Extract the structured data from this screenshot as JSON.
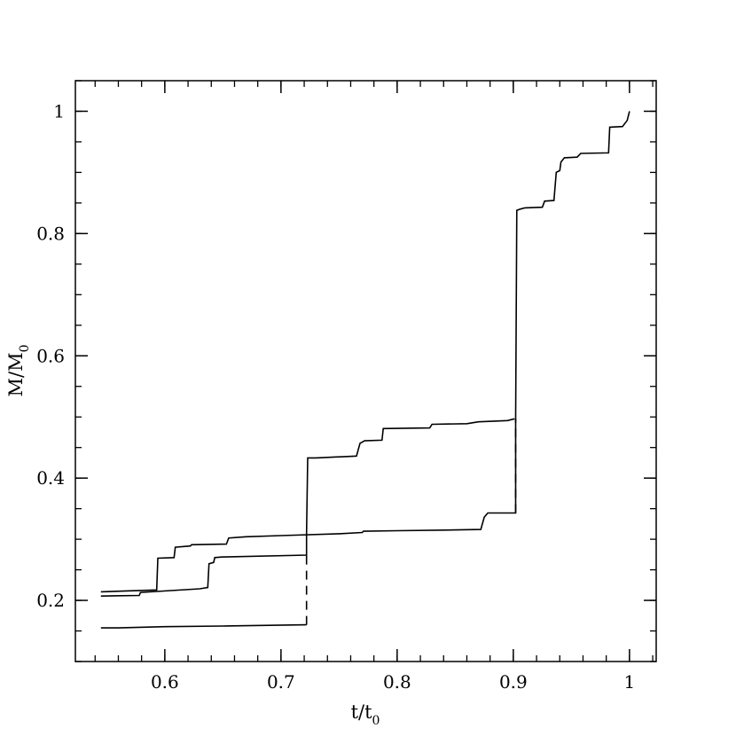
{
  "chart_data": {
    "type": "line",
    "xlabel": {
      "main": "t/t",
      "sub": "0"
    },
    "ylabel": {
      "main": "M/M",
      "sub": "0"
    },
    "xlim": [
      0.523,
      1.023
    ],
    "ylim": [
      0.1,
      1.05
    ],
    "xticks": [
      {
        "value": 0.6,
        "label": "0.6"
      },
      {
        "value": 0.7,
        "label": "0.7"
      },
      {
        "value": 0.8,
        "label": "0.8"
      },
      {
        "value": 0.9,
        "label": "0.9"
      },
      {
        "value": 1.0,
        "label": "1"
      }
    ],
    "yticks": [
      {
        "value": 0.2,
        "label": "0.2"
      },
      {
        "value": 0.4,
        "label": "0.4"
      },
      {
        "value": 0.6,
        "label": "0.6"
      },
      {
        "value": 0.8,
        "label": "0.8"
      },
      {
        "value": 1.0,
        "label": "1"
      }
    ],
    "x_minor_step": 0.02,
    "y_minor_step": 0.05,
    "series": [
      {
        "style": "solid",
        "points": [
          [
            0.545,
            0.214
          ],
          [
            0.593,
            0.217
          ],
          [
            0.594,
            0.269
          ],
          [
            0.608,
            0.27
          ],
          [
            0.609,
            0.287
          ],
          [
            0.622,
            0.289
          ],
          [
            0.623,
            0.291
          ],
          [
            0.653,
            0.292
          ],
          [
            0.655,
            0.302
          ],
          [
            0.67,
            0.304
          ],
          [
            0.7,
            0.306
          ],
          [
            0.75,
            0.309
          ],
          [
            0.77,
            0.311
          ],
          [
            0.771,
            0.313
          ],
          [
            0.8,
            0.314
          ],
          [
            0.84,
            0.315
          ],
          [
            0.872,
            0.316
          ],
          [
            0.875,
            0.336
          ],
          [
            0.878,
            0.343
          ],
          [
            0.902,
            0.343
          ],
          [
            0.902,
            0.497
          ],
          [
            0.903,
            0.838
          ],
          [
            0.906,
            0.84
          ],
          [
            0.91,
            0.842
          ],
          [
            0.925,
            0.843
          ],
          [
            0.927,
            0.853
          ],
          [
            0.935,
            0.854
          ],
          [
            0.937,
            0.9
          ],
          [
            0.94,
            0.903
          ],
          [
            0.941,
            0.917
          ],
          [
            0.944,
            0.924
          ],
          [
            0.955,
            0.925
          ],
          [
            0.958,
            0.931
          ],
          [
            0.982,
            0.932
          ],
          [
            0.983,
            0.974
          ],
          [
            0.994,
            0.975
          ],
          [
            0.998,
            0.985
          ],
          [
            1.0,
            1.0
          ]
        ]
      },
      {
        "style": "solid",
        "points": [
          [
            0.545,
            0.207
          ],
          [
            0.578,
            0.208
          ],
          [
            0.579,
            0.213
          ],
          [
            0.63,
            0.219
          ],
          [
            0.637,
            0.221
          ],
          [
            0.638,
            0.26
          ],
          [
            0.642,
            0.262
          ],
          [
            0.643,
            0.27
          ],
          [
            0.65,
            0.271
          ],
          [
            0.722,
            0.274
          ],
          [
            0.722,
            0.309
          ],
          [
            0.723,
            0.433
          ],
          [
            0.73,
            0.433
          ],
          [
            0.765,
            0.436
          ],
          [
            0.768,
            0.457
          ],
          [
            0.772,
            0.461
          ],
          [
            0.787,
            0.462
          ],
          [
            0.788,
            0.481
          ],
          [
            0.828,
            0.482
          ],
          [
            0.83,
            0.488
          ],
          [
            0.86,
            0.489
          ],
          [
            0.87,
            0.492
          ],
          [
            0.895,
            0.494
          ],
          [
            0.901,
            0.497
          ]
        ]
      },
      {
        "style": "solid",
        "points": [
          [
            0.545,
            0.155
          ],
          [
            0.56,
            0.155
          ],
          [
            0.6,
            0.157
          ],
          [
            0.65,
            0.158
          ],
          [
            0.722,
            0.16
          ]
        ]
      },
      {
        "style": "dashed",
        "points": [
          [
            0.722,
            0.16
          ],
          [
            0.722,
            0.274
          ]
        ]
      },
      {
        "style": "dashed",
        "points": [
          [
            0.902,
            0.343
          ],
          [
            0.902,
            0.497
          ]
        ]
      }
    ]
  }
}
